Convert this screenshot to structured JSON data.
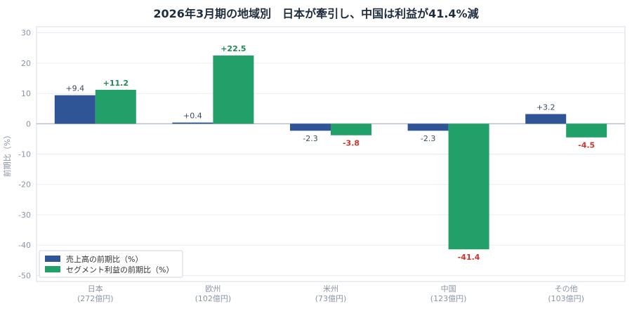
{
  "chart_data": {
    "type": "bar",
    "title": "2026年3月期の地域別　日本が牽引し、中国は利益が41.4%減",
    "ylabel": "前期比（%）",
    "xlabel": "",
    "ylim": [
      -52,
      32
    ],
    "yticks": [
      30,
      20,
      10,
      0,
      -10,
      -20,
      -30,
      -40,
      -50
    ],
    "grid": true,
    "legend_position": "bottom-left",
    "categories": [
      {
        "name": "日本",
        "sub": "(272億円)"
      },
      {
        "name": "欧州",
        "sub": "(102億円)"
      },
      {
        "name": "米州",
        "sub": "(73億円)"
      },
      {
        "name": "中国",
        "sub": "(123億円)"
      },
      {
        "name": "その他",
        "sub": "(103億円)"
      }
    ],
    "series": [
      {
        "name": "売上高の前期比（%）",
        "color": "#2f5597",
        "values": [
          9.4,
          0.4,
          -2.3,
          -2.3,
          3.2
        ],
        "labels": [
          "+9.4",
          "+0.4",
          "-2.3",
          "-2.3",
          "+3.2"
        ]
      },
      {
        "name": "セグメント利益の前期比（%）",
        "color": "#21a06a",
        "values": [
          11.2,
          22.5,
          -3.8,
          -41.4,
          -4.5
        ],
        "labels": [
          "+11.2",
          "+22.5",
          "-3.8",
          "-41.4",
          "-4.5"
        ]
      }
    ],
    "label_colors": {
      "revenue": "#3a4a5e",
      "profit_positive": "#1e8a55",
      "profit_negative": "#d0342c"
    }
  }
}
